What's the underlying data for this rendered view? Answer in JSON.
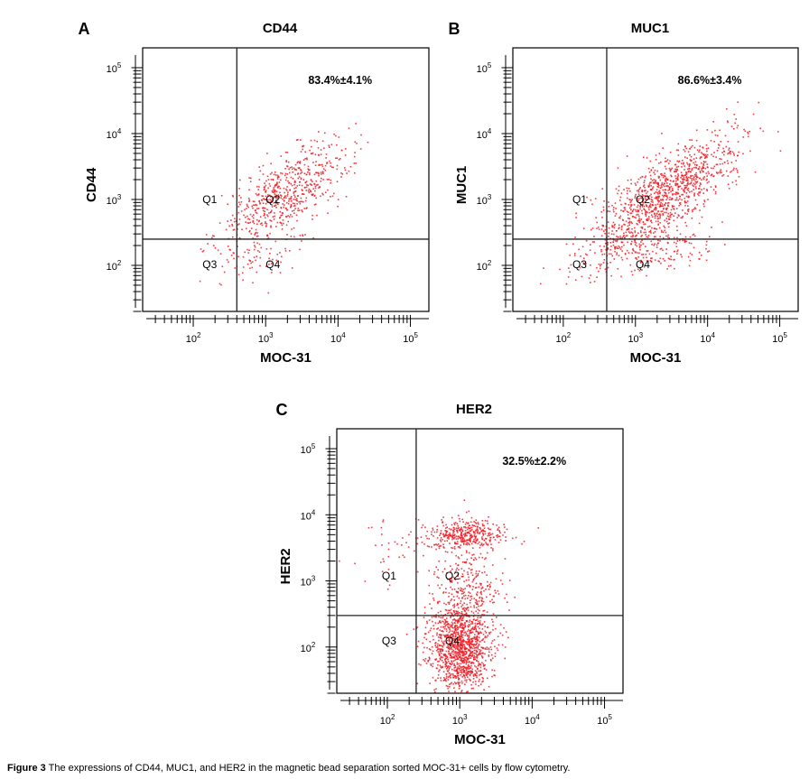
{
  "caption": {
    "label": "Figure 3",
    "text": " The expressions of CD44, MUC1, and HER2 in the magnetic bead separation sorted MOC-31+ cells by flow cytometry."
  },
  "colors": {
    "dots": "#ee1c25",
    "axis": "#000000",
    "gate": "#222222"
  },
  "chart_data": [
    {
      "type": "scatter",
      "panel": "A",
      "title": "CD44",
      "xlabel": "MOC-31",
      "ylabel": "CD44",
      "x_scale": "log",
      "y_scale": "log",
      "xlim": [
        20,
        180000
      ],
      "ylim": [
        20,
        200000
      ],
      "x_ticks": [
        "10^2",
        "10^3",
        "10^4",
        "10^5"
      ],
      "y_ticks": [
        "10^2",
        "10^3",
        "10^4",
        "10^5"
      ],
      "gate": {
        "x": 400,
        "y": 250
      },
      "quadrants": [
        "Q1",
        "Q2",
        "Q3",
        "Q4"
      ],
      "annotation": "83.4%±4.1%",
      "clusters": [
        {
          "cx": 1800,
          "cy": 1200,
          "sx": 0.45,
          "sy": 0.4,
          "corr": 0.7,
          "n": 650
        },
        {
          "cx": 900,
          "cy": 150,
          "sx": 0.28,
          "sy": 0.18,
          "corr": 0.2,
          "n": 60
        }
      ]
    },
    {
      "type": "scatter",
      "panel": "B",
      "title": "MUC1",
      "xlabel": "MOC-31",
      "ylabel": "MUC1",
      "x_scale": "log",
      "y_scale": "log",
      "xlim": [
        20,
        180000
      ],
      "ylim": [
        20,
        200000
      ],
      "x_ticks": [
        "10^2",
        "10^3",
        "10^4",
        "10^5"
      ],
      "y_ticks": [
        "10^2",
        "10^3",
        "10^4",
        "10^5"
      ],
      "gate": {
        "x": 400,
        "y": 250
      },
      "quadrants": [
        "Q1",
        "Q2",
        "Q3",
        "Q4"
      ],
      "annotation": "86.6%±3.4%",
      "clusters": [
        {
          "cx": 2500,
          "cy": 1200,
          "sx": 0.5,
          "sy": 0.45,
          "corr": 0.75,
          "n": 1100
        },
        {
          "cx": 1500,
          "cy": 180,
          "sx": 0.45,
          "sy": 0.2,
          "corr": 0.2,
          "n": 200
        }
      ]
    },
    {
      "type": "scatter",
      "panel": "C",
      "title": "HER2",
      "xlabel": "MOC-31",
      "ylabel": "HER2",
      "x_scale": "log",
      "y_scale": "log",
      "xlim": [
        20,
        180000
      ],
      "ylim": [
        20,
        200000
      ],
      "x_ticks": [
        "10^2",
        "10^3",
        "10^4",
        "10^5"
      ],
      "y_ticks": [
        "10^2",
        "10^3",
        "10^4",
        "10^5"
      ],
      "gate": {
        "x": 250,
        "y": 300
      },
      "quadrants": [
        "Q1",
        "Q2",
        "Q3",
        "Q4"
      ],
      "annotation": "32.5%±2.2%",
      "clusters": [
        {
          "cx": 1000,
          "cy": 100,
          "sx": 0.22,
          "sy": 0.35,
          "corr": 0.0,
          "n": 1200
        },
        {
          "cx": 1200,
          "cy": 5000,
          "sx": 0.28,
          "sy": 0.12,
          "corr": 0.0,
          "n": 380
        },
        {
          "cx": 1300,
          "cy": 800,
          "sx": 0.25,
          "sy": 0.3,
          "corr": 0.0,
          "n": 250
        },
        {
          "cx": 150,
          "cy": 3000,
          "sx": 0.35,
          "sy": 0.3,
          "corr": 0.0,
          "n": 45
        }
      ]
    }
  ]
}
